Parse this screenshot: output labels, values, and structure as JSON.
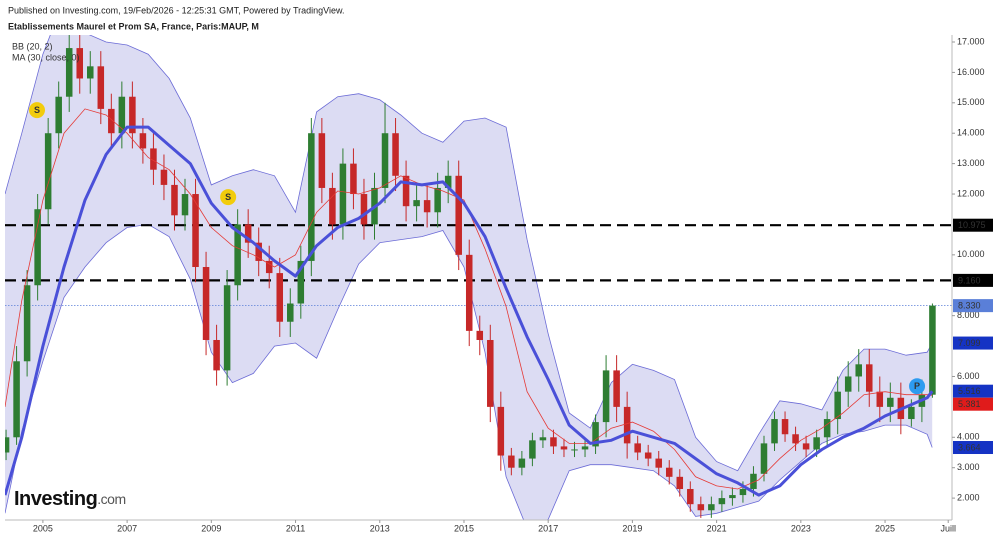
{
  "chart_data": {
    "type": "candlestick",
    "subtitle": "Published on Investing.com, 19/Feb/2026 - 12:25:31 GMT, Powered by TradingView.",
    "title": "Etablissements Maurel et Prom SA, France, Paris:MAUP, M",
    "logo": "Investing",
    "logo_suffix": ".com",
    "up_color": "#2e7d32",
    "down_color": "#c62828",
    "x": [
      2004.125,
      2004.375,
      2004.625,
      2004.875,
      2005.125,
      2005.375,
      2005.625,
      2005.875,
      2006.125,
      2006.375,
      2006.625,
      2006.875,
      2007.125,
      2007.375,
      2007.625,
      2007.875,
      2008.125,
      2008.375,
      2008.625,
      2008.875,
      2009.125,
      2009.375,
      2009.625,
      2009.875,
      2010.125,
      2010.375,
      2010.625,
      2010.875,
      2011.125,
      2011.375,
      2011.625,
      2011.875,
      2012.125,
      2012.375,
      2012.625,
      2012.875,
      2013.125,
      2013.375,
      2013.625,
      2013.875,
      2014.125,
      2014.375,
      2014.625,
      2014.875,
      2015.125,
      2015.375,
      2015.625,
      2015.875,
      2016.125,
      2016.375,
      2016.625,
      2016.875,
      2017.125,
      2017.375,
      2017.625,
      2017.875,
      2018.125,
      2018.375,
      2018.625,
      2018.875,
      2019.125,
      2019.375,
      2019.625,
      2019.875,
      2020.125,
      2020.375,
      2020.625,
      2020.875,
      2021.125,
      2021.375,
      2021.625,
      2021.875,
      2022.125,
      2022.375,
      2022.625,
      2022.875,
      2023.125,
      2023.375,
      2023.625,
      2023.875,
      2024.125,
      2024.375,
      2024.625,
      2024.875,
      2025.125,
      2025.375,
      2025.625,
      2025.875,
      2026.125
    ],
    "open": [
      3.5,
      4.0,
      6.5,
      9.0,
      11.5,
      14.0,
      15.2,
      16.8,
      15.8,
      16.2,
      14.8,
      14.0,
      15.2,
      14.0,
      13.5,
      12.8,
      12.3,
      11.3,
      12.0,
      9.6,
      7.2,
      6.2,
      9.0,
      11.0,
      10.4,
      9.8,
      9.4,
      7.8,
      8.4,
      9.8,
      14.0,
      12.2,
      11.0,
      13.0,
      12.0,
      11.0,
      12.2,
      14.0,
      12.6,
      11.6,
      11.8,
      11.4,
      12.2,
      12.6,
      10.0,
      7.5,
      7.2,
      5.0,
      3.4,
      3.0,
      3.3,
      3.9,
      4.0,
      3.7,
      3.6,
      3.6,
      3.7,
      4.5,
      6.2,
      5.0,
      3.8,
      3.5,
      3.3,
      3.0,
      2.7,
      2.3,
      1.8,
      1.6,
      1.8,
      2.0,
      2.1,
      2.3,
      2.8,
      3.8,
      4.6,
      4.1,
      3.8,
      3.6,
      4.0,
      4.6,
      5.5,
      6.0,
      6.4,
      5.5,
      5.0,
      5.3,
      4.6,
      5.0,
      5.4
    ],
    "high": [
      4.25,
      7.0,
      9.5,
      12.0,
      14.5,
      15.7,
      18.2,
      17.3,
      16.7,
      16.7,
      15.3,
      15.7,
      15.7,
      14.5,
      14.0,
      13.3,
      12.8,
      12.5,
      12.5,
      10.1,
      7.7,
      9.5,
      11.5,
      11.5,
      10.9,
      10.3,
      9.9,
      8.9,
      10.3,
      14.5,
      14.5,
      12.7,
      13.5,
      13.5,
      12.5,
      12.7,
      15.0,
      14.5,
      13.1,
      12.3,
      12.3,
      12.7,
      13.1,
      13.1,
      10.5,
      8.0,
      7.7,
      5.5,
      3.65,
      3.55,
      4.15,
      4.25,
      4.25,
      3.95,
      3.85,
      3.95,
      4.75,
      6.7,
      6.7,
      5.5,
      4.05,
      3.75,
      3.55,
      3.25,
      2.95,
      2.55,
      2.05,
      2.05,
      2.25,
      2.35,
      2.55,
      3.05,
      4.05,
      4.85,
      4.85,
      4.35,
      4.05,
      4.25,
      4.85,
      6.0,
      6.5,
      6.9,
      6.9,
      6.0,
      5.8,
      5.8,
      5.25,
      5.9,
      8.4
    ],
    "low": [
      3.25,
      3.75,
      6.0,
      8.5,
      11.0,
      13.5,
      14.7,
      15.3,
      15.3,
      14.3,
      13.5,
      13.5,
      13.5,
      13.0,
      12.3,
      11.8,
      10.8,
      10.8,
      9.1,
      6.7,
      5.7,
      5.7,
      8.5,
      9.9,
      9.3,
      8.9,
      7.3,
      7.3,
      7.9,
      9.3,
      11.7,
      10.5,
      10.5,
      11.5,
      10.5,
      10.5,
      11.7,
      12.1,
      11.1,
      11.1,
      10.9,
      10.9,
      11.7,
      9.5,
      7.0,
      6.7,
      4.5,
      2.9,
      2.75,
      2.75,
      3.05,
      3.65,
      3.45,
      3.35,
      3.35,
      3.35,
      3.45,
      4.0,
      4.5,
      3.3,
      3.25,
      3.05,
      2.75,
      2.45,
      2.05,
      1.55,
      1.35,
      1.35,
      1.55,
      1.75,
      1.85,
      2.05,
      2.55,
      3.55,
      3.85,
      3.55,
      3.35,
      3.35,
      3.75,
      4.1,
      5.0,
      5.5,
      5.0,
      4.5,
      4.5,
      4.1,
      4.35,
      4.5,
      5.3
    ],
    "close": [
      4.0,
      6.5,
      9.0,
      11.5,
      14.0,
      15.2,
      16.8,
      15.8,
      16.2,
      14.8,
      14.0,
      15.2,
      14.0,
      13.5,
      12.8,
      12.3,
      11.3,
      12.0,
      9.6,
      7.2,
      6.2,
      9.0,
      11.0,
      10.4,
      9.8,
      9.4,
      7.8,
      8.4,
      9.8,
      14.0,
      12.2,
      11.0,
      13.0,
      12.0,
      11.0,
      12.2,
      14.0,
      12.6,
      11.6,
      11.8,
      11.4,
      12.2,
      12.6,
      10.0,
      7.5,
      7.2,
      5.0,
      3.4,
      3.0,
      3.3,
      3.9,
      4.0,
      3.7,
      3.6,
      3.6,
      3.7,
      4.5,
      6.2,
      5.0,
      3.8,
      3.5,
      3.3,
      3.0,
      2.7,
      2.3,
      1.8,
      1.6,
      1.8,
      2.0,
      2.1,
      2.3,
      2.8,
      3.8,
      4.6,
      4.1,
      3.8,
      3.6,
      4.0,
      4.6,
      5.5,
      6.0,
      6.4,
      5.5,
      5.0,
      5.3,
      4.6,
      5.0,
      5.4,
      8.33
    ],
    "indicator_x": [
      2004.1,
      2004.5,
      2005,
      2005.5,
      2006,
      2006.5,
      2007,
      2007.5,
      2008,
      2008.5,
      2009,
      2009.5,
      2010,
      2010.5,
      2011,
      2011.5,
      2012,
      2012.5,
      2013,
      2013.5,
      2014,
      2014.5,
      2015,
      2015.5,
      2016,
      2016.5,
      2017,
      2017.5,
      2018,
      2018.5,
      2019,
      2019.5,
      2020,
      2020.5,
      2021,
      2021.5,
      2022,
      2022.5,
      2023,
      2023.5,
      2024,
      2024.5,
      2025,
      2025.5,
      2026,
      2026.12
    ],
    "bollinger": {
      "name": "BB (20, 2)",
      "fill": "#dcdcf3",
      "line_color": "#6b6bd6",
      "basis_color": "#e53935",
      "upper": [
        12.0,
        14.0,
        16.6,
        18.4,
        17.3,
        17.0,
        16.9,
        16.6,
        15.8,
        14.5,
        12.3,
        12.6,
        12.8,
        12.6,
        11.4,
        14.7,
        15.2,
        15.3,
        15.1,
        14.6,
        14.0,
        13.7,
        14.4,
        14.5,
        14.2,
        10.5,
        7.4,
        4.8,
        4.3,
        5.8,
        6.4,
        6.2,
        5.9,
        4.0,
        3.2,
        2.9,
        4.1,
        5.2,
        5.1,
        4.9,
        6.2,
        6.9,
        6.9,
        6.7,
        6.8,
        7.099
      ],
      "lower": [
        1.5,
        4.2,
        6.5,
        8.6,
        9.6,
        10.4,
        10.9,
        11.0,
        10.6,
        9.2,
        6.8,
        5.8,
        6.1,
        7.0,
        7.1,
        6.6,
        8.2,
        9.7,
        10.4,
        10.5,
        10.6,
        10.8,
        9.6,
        6.8,
        2.7,
        1.0,
        1.3,
        2.9,
        3.1,
        3.1,
        3.0,
        2.9,
        2.4,
        1.4,
        1.5,
        1.7,
        1.9,
        2.6,
        3.2,
        3.8,
        4.1,
        4.2,
        4.4,
        4.4,
        4.1,
        3.664
      ],
      "basis": [
        5.0,
        8.5,
        11.8,
        14.0,
        14.8,
        14.6,
        14.0,
        13.2,
        12.8,
        12.0,
        10.9,
        10.3,
        10.0,
        9.6,
        10.0,
        11.4,
        12.1,
        12.0,
        12.2,
        12.6,
        12.3,
        12.1,
        11.8,
        10.2,
        8.3,
        5.5,
        4.3,
        3.8,
        3.8,
        4.3,
        4.5,
        4.2,
        3.6,
        2.7,
        2.4,
        2.3,
        2.6,
        3.3,
        3.9,
        4.3,
        4.8,
        5.4,
        5.5,
        5.4,
        5.4,
        5.381
      ]
    },
    "moving_average": {
      "name": "MA (30, close, 0)",
      "color": "#4a50d8",
      "values": [
        2.1,
        4.0,
        7.0,
        9.6,
        11.8,
        13.3,
        14.2,
        14.2,
        13.6,
        13.0,
        11.7,
        10.9,
        10.4,
        9.8,
        9.3,
        10.3,
        10.9,
        11.2,
        11.7,
        12.4,
        12.3,
        12.4,
        11.7,
        10.6,
        8.9,
        7.3,
        5.9,
        4.4,
        3.8,
        3.9,
        4.2,
        4.0,
        3.8,
        3.3,
        2.8,
        2.5,
        2.1,
        2.4,
        3.1,
        3.6,
        4.0,
        4.3,
        4.7,
        5.0,
        5.3,
        5.516
      ]
    },
    "price_labels": {
      "values": [
        10.975,
        9.16,
        8.33,
        7.099,
        5.516,
        5.381,
        3.664
      ],
      "value_labels": [
        "10.975",
        "9.160",
        "8.330",
        "7.099",
        "5.516",
        "5.381",
        "3.664"
      ],
      "colors": [
        "#000000",
        "#000000",
        "#5a7fd8",
        "#1533c4",
        "#1533c4",
        "#e01b1b",
        "#1533c4"
      ],
      "lines": [
        "dashed",
        "dashed",
        "dotted",
        "none",
        "none",
        "none",
        "none"
      ]
    },
    "events": [
      {
        "label": "S",
        "x": 2004.86,
        "y": 14.76,
        "color": "#f2cc0c"
      },
      {
        "label": "S",
        "x": 2009.4,
        "y": 11.9,
        "color": "#f2cc0c"
      },
      {
        "label": "P",
        "x": 2025.76,
        "y": 5.68,
        "color": "#2d9bf0"
      }
    ],
    "xlim": [
      2004.1,
      2026.59
    ],
    "xticks": [
      2005,
      2007,
      2009,
      2011,
      2013,
      2015,
      2017,
      2019,
      2021,
      2023,
      2025,
      {
        "value": 2026.5,
        "label": "Juill"
      }
    ],
    "ylim": [
      1.28,
      17.23
    ],
    "yticks": [
      {
        "value": 2,
        "label": "2.000"
      },
      {
        "value": 3,
        "label": "3.000"
      },
      {
        "value": 4,
        "label": "4.000"
      },
      {
        "value": 6,
        "label": "6.000"
      },
      {
        "value": 8,
        "label": "8.000"
      },
      {
        "value": 10,
        "label": "10.000"
      },
      {
        "value": 12,
        "label": "12.000"
      },
      {
        "value": 13,
        "label": "13.000"
      },
      {
        "value": 14,
        "label": "14.000"
      },
      {
        "value": 15,
        "label": "15.000"
      },
      {
        "value": 16,
        "label": "16.000"
      },
      {
        "value": 17,
        "label": "17.000"
      }
    ]
  }
}
